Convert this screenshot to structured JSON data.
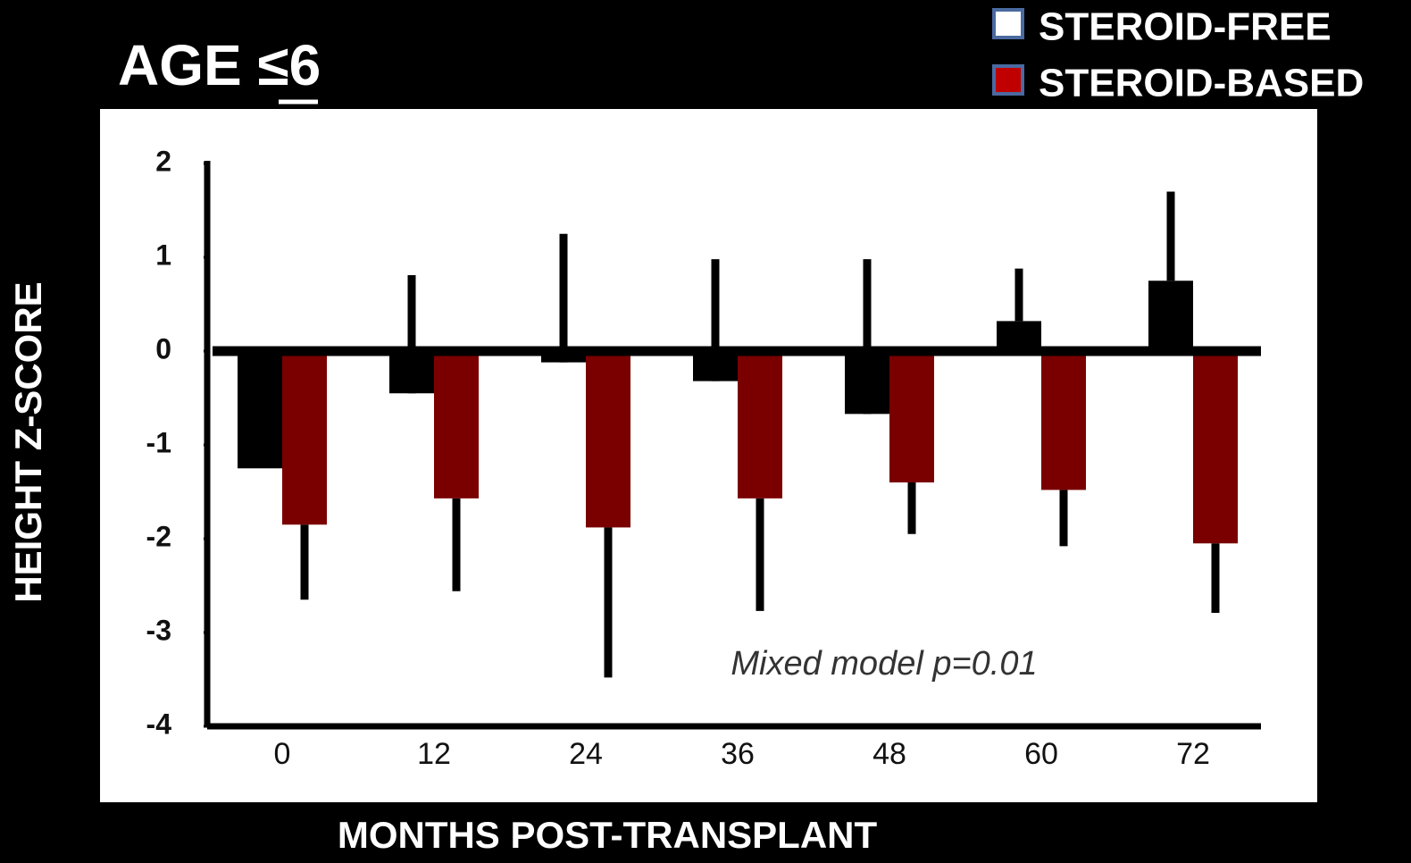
{
  "chart_data": {
    "type": "bar",
    "title": "AGE ≤6",
    "x_label": "MONTHS POST-TRANSPLANT",
    "y_label": "HEIGHT Z-SCORE",
    "annotation": "Mixed model p=0.01",
    "categories": [
      "0",
      "12",
      "24",
      "36",
      "48",
      "60",
      "72"
    ],
    "series": [
      {
        "name": "STEROID-FREE",
        "color": "#000000",
        "legend_color": "#ffffff",
        "error_side": "up",
        "values": [
          -1.25,
          -0.45,
          -0.12,
          -0.32,
          -0.67,
          0.32,
          0.75
        ],
        "errors": [
          null,
          1.26,
          1.37,
          1.3,
          1.65,
          0.56,
          0.95
        ]
      },
      {
        "name": "STEROID-BASED",
        "color": "#7a0000",
        "legend_color": "#c00000",
        "error_side": "down",
        "values": [
          -1.85,
          -1.57,
          -1.88,
          -1.57,
          -1.4,
          -1.48,
          -2.05
        ],
        "errors": [
          0.8,
          0.99,
          1.6,
          1.2,
          0.55,
          0.6,
          0.74
        ]
      }
    ],
    "ylim": [
      -4,
      2
    ],
    "yticks": [
      2,
      1,
      0,
      -1,
      -2,
      -3,
      -4
    ]
  }
}
